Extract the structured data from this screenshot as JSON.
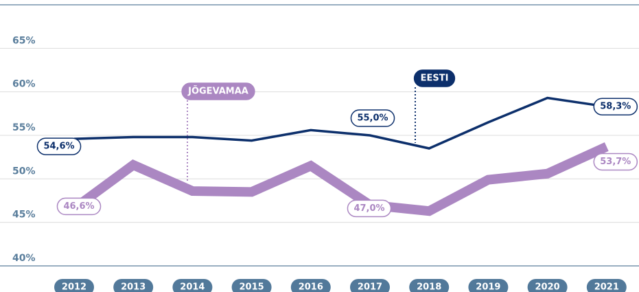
{
  "chart_data": {
    "type": "line",
    "categories": [
      "2012",
      "2013",
      "2014",
      "2015",
      "2016",
      "2017",
      "2018",
      "2019",
      "2020",
      "2021"
    ],
    "series": [
      {
        "name": "EESTI",
        "color": "#0c2f6b",
        "values": [
          54.6,
          54.8,
          54.8,
          54.4,
          55.6,
          55.0,
          53.5,
          56.5,
          59.3,
          58.3
        ],
        "value_labels": [
          "54,6%",
          null,
          null,
          null,
          null,
          "55,0%",
          null,
          null,
          null,
          "58,3%"
        ]
      },
      {
        "name": "JÕGEVAMAA",
        "color": "#ab87c2",
        "values": [
          46.6,
          51.6,
          48.6,
          48.5,
          51.5,
          47.0,
          46.3,
          49.9,
          50.6,
          53.7
        ],
        "value_labels": [
          "46,6%",
          null,
          null,
          null,
          null,
          "47,0%",
          null,
          null,
          null,
          "53,7%"
        ]
      }
    ],
    "ylim": [
      40,
      70
    ],
    "yticks": [
      {
        "value": 40,
        "label": "40%"
      },
      {
        "value": 45,
        "label": "45%"
      },
      {
        "value": 50,
        "label": "50%"
      },
      {
        "value": 55,
        "label": "55%"
      },
      {
        "value": 60,
        "label": "60%"
      },
      {
        "value": 65,
        "label": "65%"
      }
    ],
    "grid": true
  }
}
